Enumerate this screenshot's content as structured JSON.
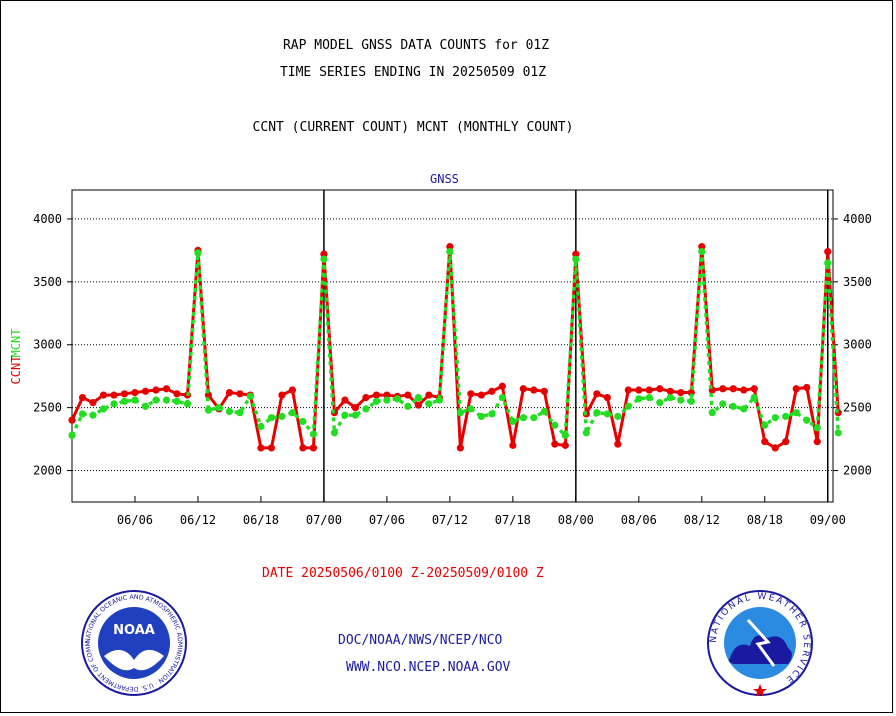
{
  "title_line1": "RAP MODEL GNSS DATA COUNTS for 01Z",
  "title_line2": "TIME SERIES ENDING IN 20250509 01Z",
  "subtitle": "CCNT (CURRENT COUNT) MCNT (MONTHLY COUNT)",
  "panel_label": "GNSS",
  "date_range": "DATE 20250506/0100 Z-20250509/0100 Z",
  "org_line1": "DOC/NOAA/NWS/NCEP/NCO",
  "org_line2": "WWW.NCO.NCEP.NOAA.GOV",
  "logos": {
    "noaa_text": "NOAA",
    "noaa_ring": "NATIONAL OCEANIC AND ATMOSPHERIC ADMINISTRATION · U.S. DEPARTMENT OF COMMERCE",
    "nws_ring": "NATIONAL WEATHER SERVICE"
  },
  "colors": {
    "ccnt": "#e60000",
    "mcnt": "#22dd22",
    "text_blue": "#1a1aa0",
    "grid": "#000000"
  },
  "chart_data": {
    "type": "line",
    "ylabel_ccnt": "CCNT",
    "ylabel_mcnt": "MCNT",
    "ylim": [
      1750,
      4230
    ],
    "yticks": [
      2000,
      2500,
      3000,
      3500,
      4000
    ],
    "xlim": [
      0,
      72.5
    ],
    "xticks": [
      {
        "x": 6,
        "label": "06/06"
      },
      {
        "x": 12,
        "label": "06/12"
      },
      {
        "x": 18,
        "label": "06/18"
      },
      {
        "x": 24,
        "label": "07/00"
      },
      {
        "x": 30,
        "label": "07/06"
      },
      {
        "x": 36,
        "label": "07/12"
      },
      {
        "x": 42,
        "label": "07/18"
      },
      {
        "x": 48,
        "label": "08/00"
      },
      {
        "x": 54,
        "label": "08/06"
      },
      {
        "x": 60,
        "label": "08/12"
      },
      {
        "x": 66,
        "label": "08/18"
      },
      {
        "x": 72,
        "label": "09/00"
      }
    ],
    "day_boundaries": [
      24,
      48,
      72
    ],
    "series": [
      {
        "name": "CCNT",
        "values": [
          2400,
          2580,
          2540,
          2600,
          2600,
          2610,
          2620,
          2630,
          2640,
          2650,
          2610,
          2600,
          3750,
          2600,
          2490,
          2620,
          2610,
          2600,
          2180,
          2180,
          2600,
          2640,
          2180,
          2180,
          3720,
          2460,
          2560,
          2500,
          2580,
          2600,
          2600,
          2590,
          2600,
          2520,
          2600,
          2580,
          3780,
          2180,
          2610,
          2600,
          2630,
          2670,
          2200,
          2650,
          2640,
          2630,
          2210,
          2200,
          3720,
          2450,
          2610,
          2580,
          2210,
          2640,
          2640,
          2640,
          2650,
          2630,
          2620,
          2620,
          3780,
          2640,
          2650,
          2650,
          2640,
          2650,
          2230,
          2180,
          2230,
          2650,
          2660,
          2230,
          3740,
          2460
        ]
      },
      {
        "name": "MCNT",
        "values": [
          2280,
          2450,
          2440,
          2490,
          2530,
          2550,
          2560,
          2510,
          2560,
          2560,
          2550,
          2530,
          3730,
          2480,
          2500,
          2470,
          2460,
          2590,
          2350,
          2420,
          2430,
          2460,
          2390,
          2290,
          3680,
          2300,
          2440,
          2440,
          2490,
          2550,
          2560,
          2570,
          2510,
          2580,
          2530,
          2560,
          3740,
          2460,
          2490,
          2430,
          2450,
          2580,
          2390,
          2420,
          2420,
          2470,
          2360,
          2280,
          3680,
          2300,
          2460,
          2450,
          2430,
          2510,
          2570,
          2580,
          2540,
          2580,
          2560,
          2550,
          3740,
          2460,
          2530,
          2510,
          2490,
          2580,
          2360,
          2420,
          2430,
          2460,
          2400,
          2340,
          3650,
          2300
        ]
      }
    ]
  }
}
